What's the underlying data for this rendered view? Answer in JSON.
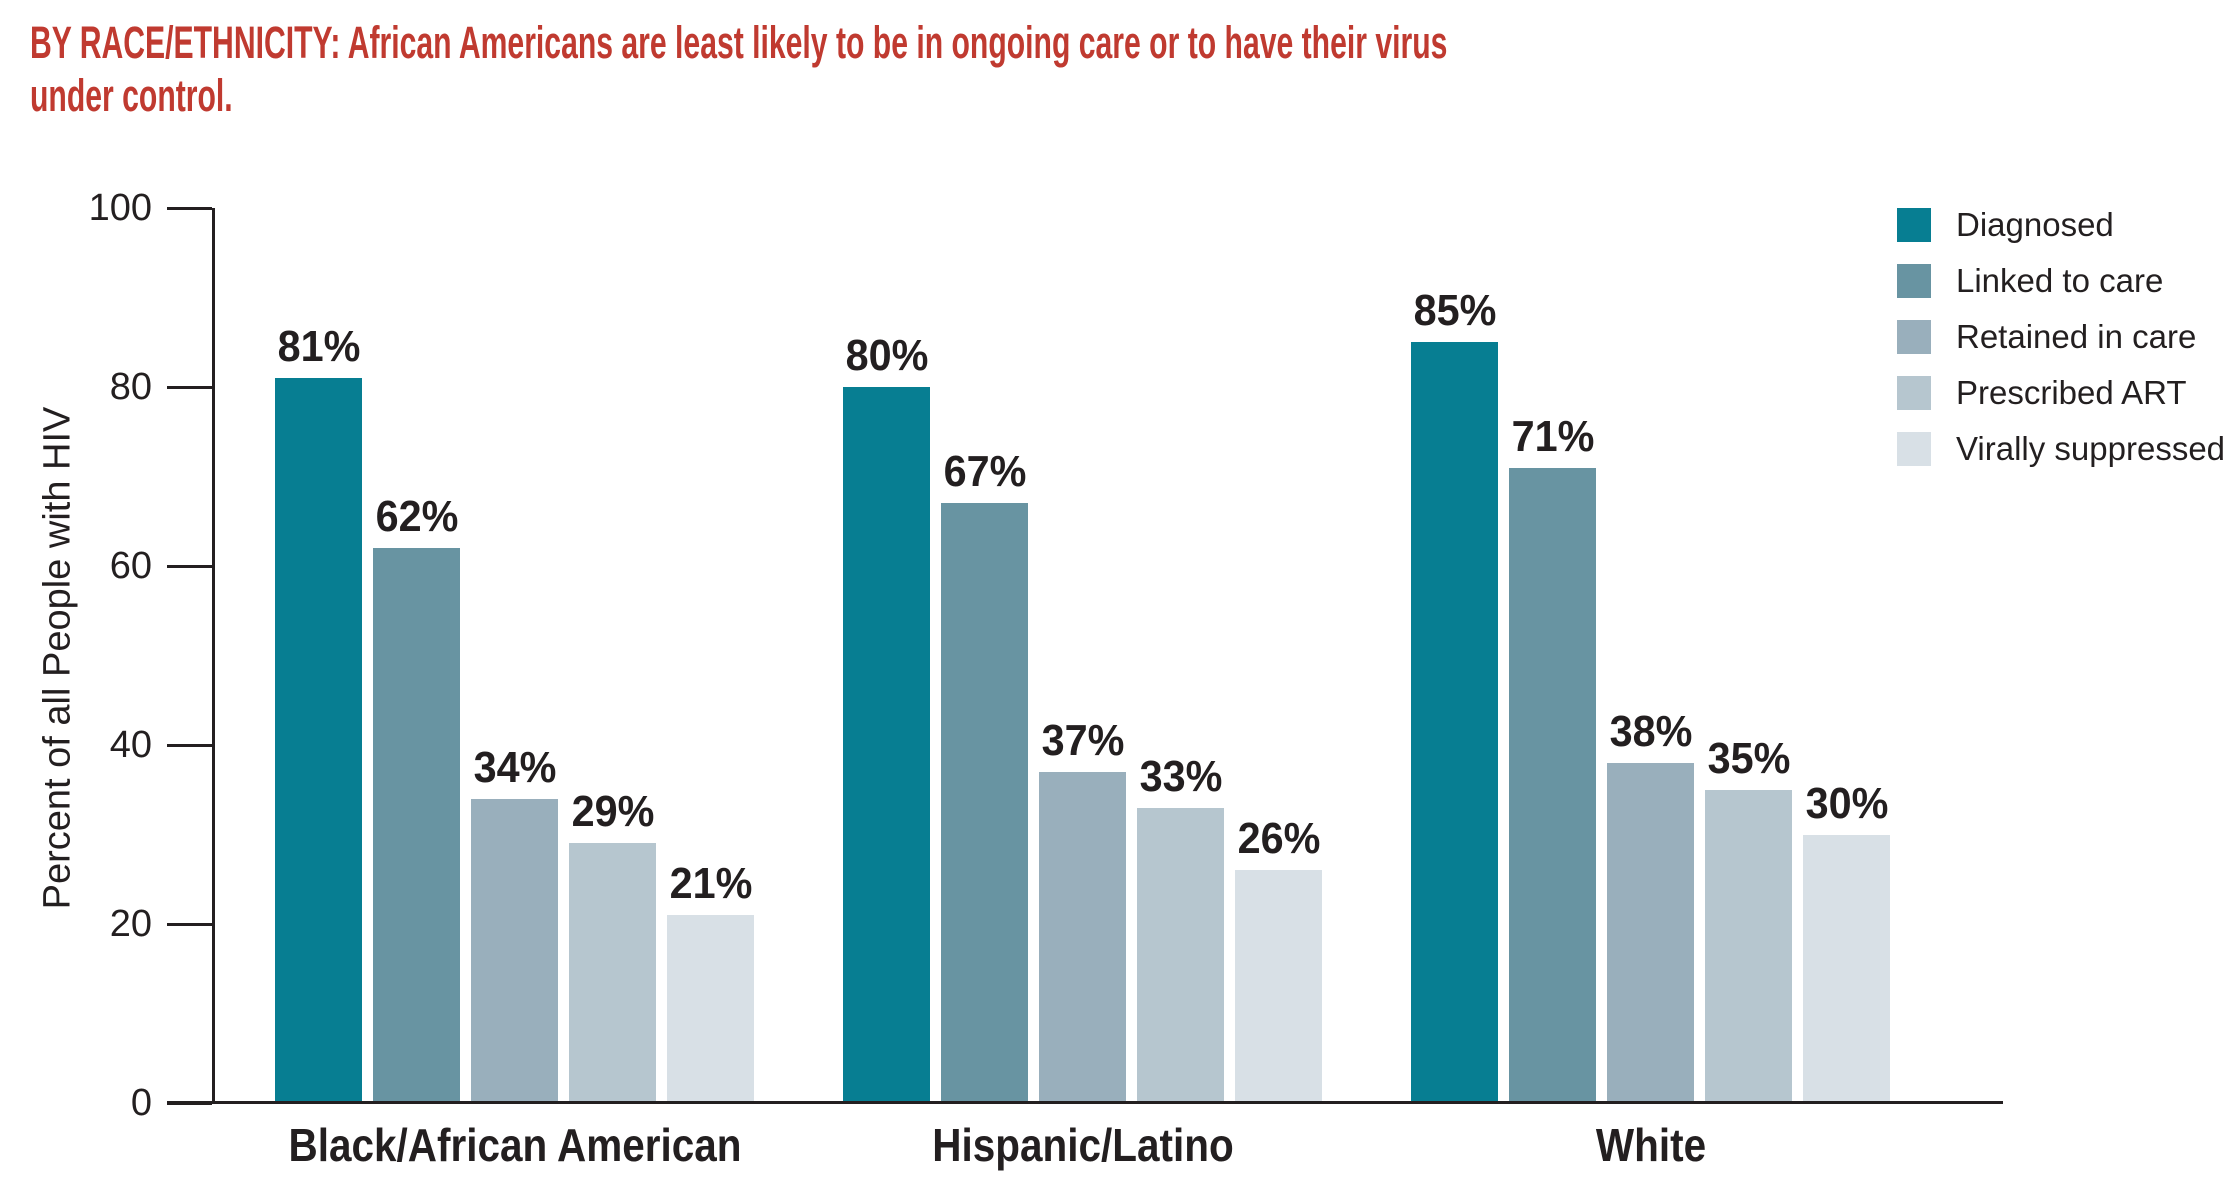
{
  "title": {
    "line1": "BY RACE/ETHNICITY: African Americans are least likely to be in ongoing care or to have their virus",
    "line2": "under control.",
    "color": "#c03a30"
  },
  "colors": {
    "text": "#231f20",
    "axis": "#231f20",
    "background": "#ffffff"
  },
  "chart_data": {
    "type": "bar",
    "title": "BY RACE/ETHNICITY: African Americans are least likely to be in ongoing care or to have their virus under control.",
    "xlabel": "",
    "ylabel": "Percent of all People with HIV",
    "ylim": [
      0,
      100
    ],
    "yticks": [
      0,
      20,
      40,
      60,
      80,
      100
    ],
    "grid": false,
    "legend_position": "top-right",
    "value_suffix": "%",
    "categories": [
      "Black/African American",
      "Hispanic/Latino",
      "White"
    ],
    "series": [
      {
        "name": "Diagnosed",
        "color": "#077e92",
        "values": [
          81,
          80,
          85
        ]
      },
      {
        "name": "Linked to care",
        "color": "#6894a2",
        "values": [
          62,
          67,
          71
        ]
      },
      {
        "name": "Retained in care",
        "color": "#99afbc",
        "values": [
          34,
          37,
          38
        ]
      },
      {
        "name": "Prescribed ART",
        "color": "#b6c6cf",
        "values": [
          29,
          33,
          35
        ]
      },
      {
        "name": "Virally suppressed",
        "color": "#d8e0e6",
        "values": [
          21,
          26,
          30
        ]
      }
    ]
  }
}
